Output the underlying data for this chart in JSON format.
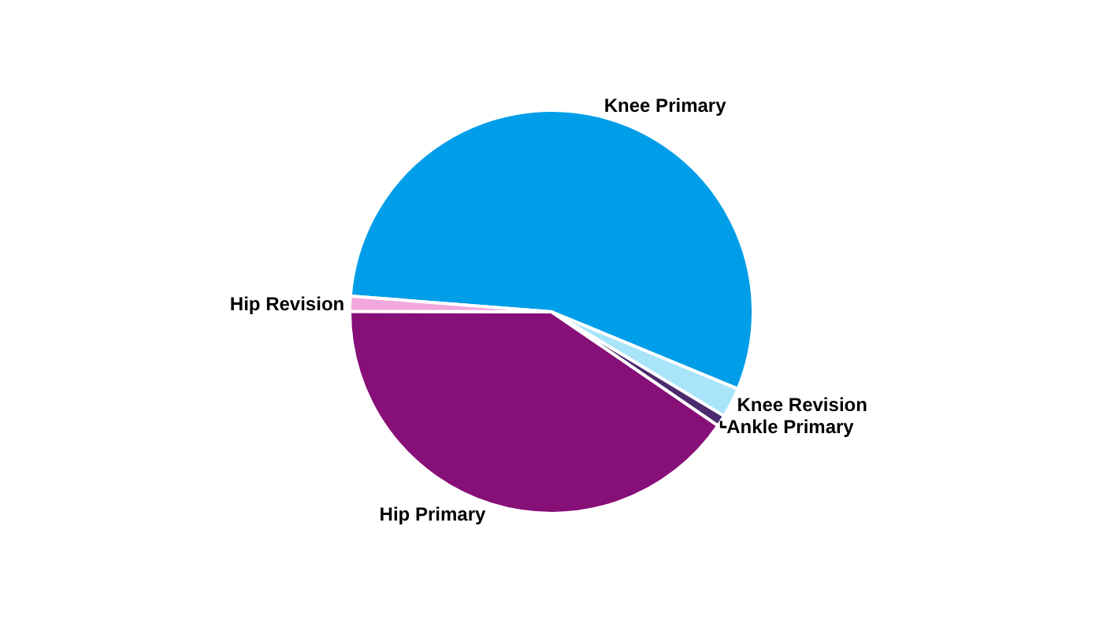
{
  "chart_data": {
    "type": "pie",
    "categories": [
      "Knee Primary",
      "Knee Revision",
      "Ankle Primary",
      "Hip Primary",
      "Hip Revision"
    ],
    "values": [
      55,
      2.4,
      0.9,
      40.5,
      1.2
    ],
    "colors": [
      "#009ee8",
      "#a8e4fa",
      "#4b2a6e",
      "#870f78",
      "#f2a8dc"
    ],
    "legend": false
  }
}
